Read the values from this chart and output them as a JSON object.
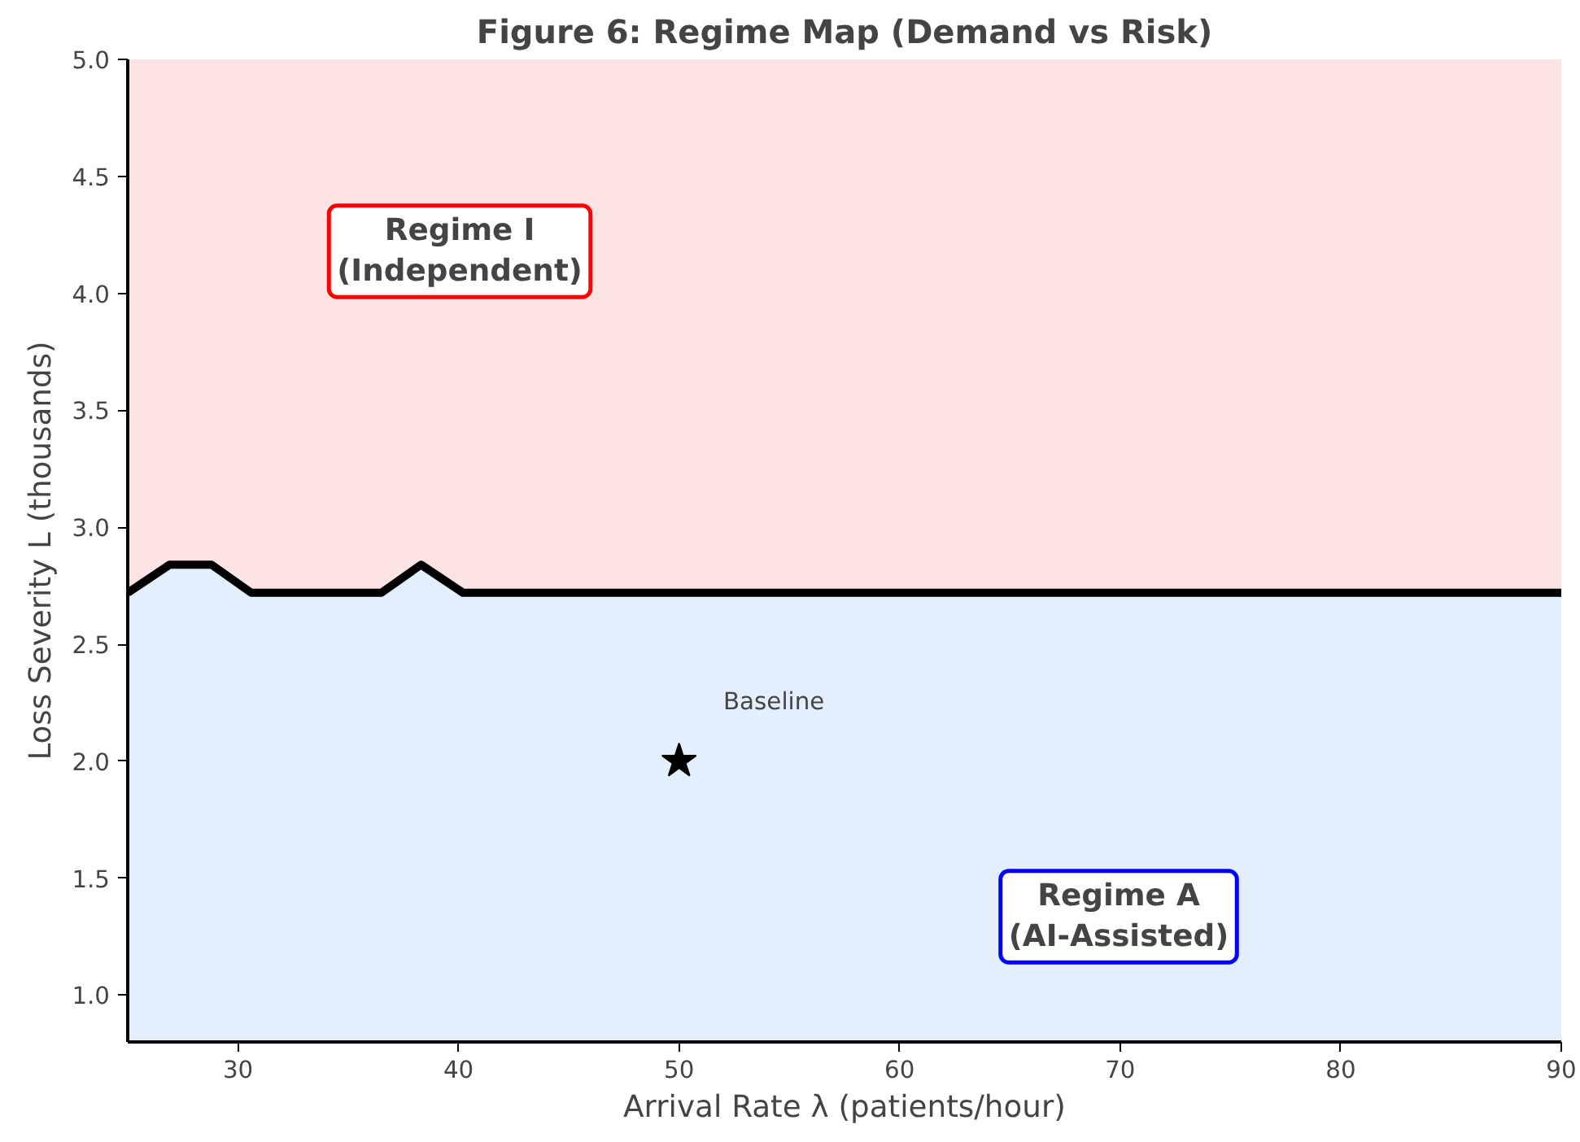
{
  "chart_data": {
    "type": "area",
    "title": "Figure 6: Regime Map (Demand vs Risk)",
    "xlabel": "Arrival Rate λ (patients/hour)",
    "ylabel": "Loss Severity L (thousands)",
    "xlim": [
      25,
      90
    ],
    "xticks": [
      30,
      40,
      50,
      60,
      70,
      80,
      90
    ],
    "ylim": [
      0.8,
      5.0
    ],
    "yticks": [
      {
        "value": 1,
        "label": "1.0"
      },
      {
        "value": 1.5,
        "label": "1.5"
      },
      {
        "value": 2,
        "label": "2.0"
      },
      {
        "value": 2.5,
        "label": "2.5"
      },
      {
        "value": 3,
        "label": "3.0"
      },
      {
        "value": 3.5,
        "label": "3.5"
      },
      {
        "value": 4,
        "label": "4.0"
      },
      {
        "value": 4.5,
        "label": "4.5"
      },
      {
        "value": 5,
        "label": "5.0"
      }
    ],
    "bands": [
      {
        "axis": "y",
        "from": 2.72,
        "to": 5.0,
        "color": "#fde4e4"
      }
    ],
    "series": [
      {
        "color": "#e3effd",
        "x": [
          25,
          26.9,
          28.8,
          30.6,
          36.5,
          38.3,
          40.2,
          90
        ],
        "values": [
          2.72,
          2.84,
          2.84,
          2.72,
          2.72,
          2.84,
          2.72,
          2.72
        ]
      },
      {
        "type": "scatter",
        "color": "#000000",
        "marker": "star",
        "x": [
          50
        ],
        "values": [
          2.0
        ]
      }
    ],
    "annotations": [
      "Regime I\n(Independent)",
      "Regime A\n(AI-Assisted)",
      "Baseline"
    ]
  }
}
